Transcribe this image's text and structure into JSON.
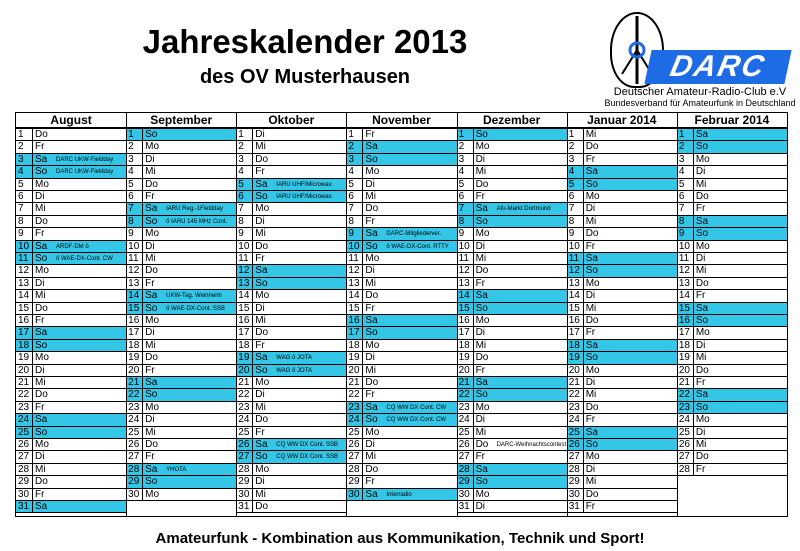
{
  "title": "Jahreskalender 2013",
  "subtitle": "des OV Musterhausen",
  "logo": {
    "darc": "DARC",
    "line1": "Deutscher Amateur-Radio-Club e.V",
    "line2": "Bundesverband für Amateurfunk in Deutschland",
    "accent_color": "#1e6be6"
  },
  "highlight_color": "#33c6e6",
  "months": [
    {
      "name": "August",
      "days": [
        {
          "d": "1",
          "w": "Do"
        },
        {
          "d": "2",
          "w": "Fr"
        },
        {
          "d": "3",
          "w": "Sa",
          "hl": true,
          "ev": "DARC UKW-Fieldday"
        },
        {
          "d": "4",
          "w": "So",
          "hl": true,
          "ev": "DARC UKW-Fieldday"
        },
        {
          "d": "5",
          "w": "Mo"
        },
        {
          "d": "6",
          "w": "Di"
        },
        {
          "d": "7",
          "w": "Mi"
        },
        {
          "d": "8",
          "w": "Do"
        },
        {
          "d": "9",
          "w": "Fr"
        },
        {
          "d": "10",
          "w": "Sa",
          "hl": true,
          "ev": "ARDF-DM ö"
        },
        {
          "d": "11",
          "w": "So",
          "hl": true,
          "ev": "ö WAE-DX-Cont. CW"
        },
        {
          "d": "12",
          "w": "Mo"
        },
        {
          "d": "13",
          "w": "Di"
        },
        {
          "d": "14",
          "w": "Mi"
        },
        {
          "d": "15",
          "w": "Do"
        },
        {
          "d": "16",
          "w": "Fr"
        },
        {
          "d": "17",
          "w": "Sa",
          "hl": true
        },
        {
          "d": "18",
          "w": "So",
          "hl": true
        },
        {
          "d": "19",
          "w": "Mo"
        },
        {
          "d": "20",
          "w": "Di"
        },
        {
          "d": "21",
          "w": "Mi"
        },
        {
          "d": "22",
          "w": "Do"
        },
        {
          "d": "23",
          "w": "Fr"
        },
        {
          "d": "24",
          "w": "Sa",
          "hl": true
        },
        {
          "d": "25",
          "w": "So",
          "hl": true
        },
        {
          "d": "26",
          "w": "Mo"
        },
        {
          "d": "27",
          "w": "Di"
        },
        {
          "d": "28",
          "w": "Mi"
        },
        {
          "d": "29",
          "w": "Do"
        },
        {
          "d": "30",
          "w": "Fr"
        },
        {
          "d": "31",
          "w": "Sa",
          "hl": true
        }
      ]
    },
    {
      "name": "September",
      "days": [
        {
          "d": "1",
          "w": "So",
          "hl": true
        },
        {
          "d": "2",
          "w": "Mo"
        },
        {
          "d": "3",
          "w": "Di"
        },
        {
          "d": "4",
          "w": "Mi"
        },
        {
          "d": "5",
          "w": "Do"
        },
        {
          "d": "6",
          "w": "Fr"
        },
        {
          "d": "7",
          "w": "Sa",
          "hl": true,
          "ev": "IARU Reg.-1Fieldday"
        },
        {
          "d": "8",
          "w": "So",
          "hl": true,
          "ev": "ö IARU 145 MHz Cont."
        },
        {
          "d": "9",
          "w": "Mo"
        },
        {
          "d": "10",
          "w": "Di"
        },
        {
          "d": "11",
          "w": "Mi"
        },
        {
          "d": "12",
          "w": "Do"
        },
        {
          "d": "13",
          "w": "Fr"
        },
        {
          "d": "14",
          "w": "Sa",
          "hl": true,
          "ev": "UKW-Tag. Weinheim"
        },
        {
          "d": "15",
          "w": "So",
          "hl": true,
          "ev": "ö WAE-DX-Cont. SSB"
        },
        {
          "d": "16",
          "w": "Mo"
        },
        {
          "d": "17",
          "w": "Di"
        },
        {
          "d": "18",
          "w": "Mi"
        },
        {
          "d": "19",
          "w": "Do"
        },
        {
          "d": "20",
          "w": "Fr"
        },
        {
          "d": "21",
          "w": "Sa",
          "hl": true
        },
        {
          "d": "22",
          "w": "So",
          "hl": true
        },
        {
          "d": "23",
          "w": "Mo"
        },
        {
          "d": "24",
          "w": "Di"
        },
        {
          "d": "25",
          "w": "Mi"
        },
        {
          "d": "26",
          "w": "Do"
        },
        {
          "d": "27",
          "w": "Fr"
        },
        {
          "d": "28",
          "w": "Sa",
          "hl": true,
          "ev": "YHOTA"
        },
        {
          "d": "29",
          "w": "So",
          "hl": true
        },
        {
          "d": "30",
          "w": "Mo"
        }
      ]
    },
    {
      "name": "Oktober",
      "days": [
        {
          "d": "1",
          "w": "Di"
        },
        {
          "d": "2",
          "w": "Mi"
        },
        {
          "d": "3",
          "w": "Do"
        },
        {
          "d": "4",
          "w": "Fr"
        },
        {
          "d": "5",
          "w": "Sa",
          "hl": true,
          "ev": "IARU UHF/Microwav."
        },
        {
          "d": "6",
          "w": "So",
          "hl": true,
          "ev": "IARU UHF/Microwav."
        },
        {
          "d": "7",
          "w": "Mo"
        },
        {
          "d": "8",
          "w": "Di"
        },
        {
          "d": "9",
          "w": "Mi"
        },
        {
          "d": "10",
          "w": "Do"
        },
        {
          "d": "11",
          "w": "Fr"
        },
        {
          "d": "12",
          "w": "Sa",
          "hl": true
        },
        {
          "d": "13",
          "w": "So",
          "hl": true
        },
        {
          "d": "14",
          "w": "Mo"
        },
        {
          "d": "15",
          "w": "Di"
        },
        {
          "d": "16",
          "w": "Mi"
        },
        {
          "d": "17",
          "w": "Do"
        },
        {
          "d": "18",
          "w": "Fr"
        },
        {
          "d": "19",
          "w": "Sa",
          "hl": true,
          "ev": "WAG ö JOTA"
        },
        {
          "d": "20",
          "w": "So",
          "hl": true,
          "ev": "WAG ö JOTA"
        },
        {
          "d": "21",
          "w": "Mo"
        },
        {
          "d": "22",
          "w": "Di"
        },
        {
          "d": "23",
          "w": "Mi"
        },
        {
          "d": "24",
          "w": "Do"
        },
        {
          "d": "25",
          "w": "Fr"
        },
        {
          "d": "26",
          "w": "Sa",
          "hl": true,
          "ev": "CQ WW DX Cont. SSB"
        },
        {
          "d": "27",
          "w": "So",
          "hl": true,
          "ev": "CQ WW DX Cont. SSB"
        },
        {
          "d": "28",
          "w": "Mo"
        },
        {
          "d": "29",
          "w": "Di"
        },
        {
          "d": "30",
          "w": "Mi"
        },
        {
          "d": "31",
          "w": "Do"
        }
      ]
    },
    {
      "name": "November",
      "days": [
        {
          "d": "1",
          "w": "Fr"
        },
        {
          "d": "2",
          "w": "Sa",
          "hl": true
        },
        {
          "d": "3",
          "w": "So",
          "hl": true
        },
        {
          "d": "4",
          "w": "Mo"
        },
        {
          "d": "5",
          "w": "Di"
        },
        {
          "d": "6",
          "w": "Mi"
        },
        {
          "d": "7",
          "w": "Do"
        },
        {
          "d": "8",
          "w": "Fr"
        },
        {
          "d": "9",
          "w": "Sa",
          "hl": true,
          "ev": "DARC-Mitgliederver."
        },
        {
          "d": "10",
          "w": "So",
          "hl": true,
          "ev": "ö WAE-DX-Cont. RTTY"
        },
        {
          "d": "11",
          "w": "Mo"
        },
        {
          "d": "12",
          "w": "Di"
        },
        {
          "d": "13",
          "w": "Mi"
        },
        {
          "d": "14",
          "w": "Do"
        },
        {
          "d": "15",
          "w": "Fr"
        },
        {
          "d": "16",
          "w": "Sa",
          "hl": true
        },
        {
          "d": "17",
          "w": "So",
          "hl": true
        },
        {
          "d": "18",
          "w": "Mo"
        },
        {
          "d": "19",
          "w": "Di"
        },
        {
          "d": "20",
          "w": "Mi"
        },
        {
          "d": "21",
          "w": "Do"
        },
        {
          "d": "22",
          "w": "Fr"
        },
        {
          "d": "23",
          "w": "Sa",
          "hl": true,
          "ev": "CQ WW DX Cont. CW"
        },
        {
          "d": "24",
          "w": "So",
          "hl": true,
          "ev": "CQ WW DX Cont. CW"
        },
        {
          "d": "25",
          "w": "Mo"
        },
        {
          "d": "26",
          "w": "Di"
        },
        {
          "d": "27",
          "w": "Mi"
        },
        {
          "d": "28",
          "w": "Do"
        },
        {
          "d": "29",
          "w": "Fr"
        },
        {
          "d": "30",
          "w": "Sa",
          "hl": true,
          "ev": "Interradio"
        }
      ]
    },
    {
      "name": "Dezember",
      "days": [
        {
          "d": "1",
          "w": "So",
          "hl": true
        },
        {
          "d": "2",
          "w": "Mo"
        },
        {
          "d": "3",
          "w": "Di"
        },
        {
          "d": "4",
          "w": "Mi"
        },
        {
          "d": "5",
          "w": "Do"
        },
        {
          "d": "6",
          "w": "Fr"
        },
        {
          "d": "7",
          "w": "Sa",
          "hl": true,
          "ev": "Afu-Markt Dortmund"
        },
        {
          "d": "8",
          "w": "So",
          "hl": true
        },
        {
          "d": "9",
          "w": "Mo"
        },
        {
          "d": "10",
          "w": "Di"
        },
        {
          "d": "11",
          "w": "Mi"
        },
        {
          "d": "12",
          "w": "Do"
        },
        {
          "d": "13",
          "w": "Fr"
        },
        {
          "d": "14",
          "w": "Sa",
          "hl": true
        },
        {
          "d": "15",
          "w": "So",
          "hl": true
        },
        {
          "d": "16",
          "w": "Mo"
        },
        {
          "d": "17",
          "w": "Di"
        },
        {
          "d": "18",
          "w": "Mi"
        },
        {
          "d": "19",
          "w": "Do"
        },
        {
          "d": "20",
          "w": "Fr"
        },
        {
          "d": "21",
          "w": "Sa",
          "hl": true
        },
        {
          "d": "22",
          "w": "So",
          "hl": true
        },
        {
          "d": "23",
          "w": "Mo"
        },
        {
          "d": "24",
          "w": "Di"
        },
        {
          "d": "25",
          "w": "Mi"
        },
        {
          "d": "26",
          "w": "Do",
          "ev": "DARC-Weihnachtscontest"
        },
        {
          "d": "27",
          "w": "Fr"
        },
        {
          "d": "28",
          "w": "Sa",
          "hl": true
        },
        {
          "d": "29",
          "w": "So",
          "hl": true
        },
        {
          "d": "30",
          "w": "Mo"
        },
        {
          "d": "31",
          "w": "Di"
        }
      ]
    },
    {
      "name": "Januar 2014",
      "days": [
        {
          "d": "1",
          "w": "Mi"
        },
        {
          "d": "2",
          "w": "Do"
        },
        {
          "d": "3",
          "w": "Fr"
        },
        {
          "d": "4",
          "w": "Sa",
          "hl": true
        },
        {
          "d": "5",
          "w": "So",
          "hl": true
        },
        {
          "d": "6",
          "w": "Mo"
        },
        {
          "d": "7",
          "w": "Di"
        },
        {
          "d": "8",
          "w": "Mi"
        },
        {
          "d": "9",
          "w": "Do"
        },
        {
          "d": "10",
          "w": "Fr"
        },
        {
          "d": "11",
          "w": "Sa",
          "hl": true
        },
        {
          "d": "12",
          "w": "So",
          "hl": true
        },
        {
          "d": "13",
          "w": "Mo"
        },
        {
          "d": "14",
          "w": "Di"
        },
        {
          "d": "15",
          "w": "Mi"
        },
        {
          "d": "16",
          "w": "Do"
        },
        {
          "d": "17",
          "w": "Fr"
        },
        {
          "d": "18",
          "w": "Sa",
          "hl": true
        },
        {
          "d": "19",
          "w": "So",
          "hl": true
        },
        {
          "d": "20",
          "w": "Mo"
        },
        {
          "d": "21",
          "w": "Di"
        },
        {
          "d": "22",
          "w": "Mi"
        },
        {
          "d": "23",
          "w": "Do"
        },
        {
          "d": "24",
          "w": "Fr"
        },
        {
          "d": "25",
          "w": "Sa",
          "hl": true
        },
        {
          "d": "26",
          "w": "So",
          "hl": true
        },
        {
          "d": "27",
          "w": "Mo"
        },
        {
          "d": "28",
          "w": "Di"
        },
        {
          "d": "29",
          "w": "Mi"
        },
        {
          "d": "30",
          "w": "Do"
        },
        {
          "d": "31",
          "w": "Fr"
        }
      ]
    },
    {
      "name": "Februar 2014",
      "days": [
        {
          "d": "1",
          "w": "Sa",
          "hl": true
        },
        {
          "d": "2",
          "w": "So",
          "hl": true
        },
        {
          "d": "3",
          "w": "Mo"
        },
        {
          "d": "4",
          "w": "Di"
        },
        {
          "d": "5",
          "w": "Mi"
        },
        {
          "d": "6",
          "w": "Do"
        },
        {
          "d": "7",
          "w": "Fr"
        },
        {
          "d": "8",
          "w": "Sa",
          "hl": true
        },
        {
          "d": "9",
          "w": "So",
          "hl": true
        },
        {
          "d": "10",
          "w": "Mo"
        },
        {
          "d": "11",
          "w": "Di"
        },
        {
          "d": "12",
          "w": "Mi"
        },
        {
          "d": "13",
          "w": "Do"
        },
        {
          "d": "14",
          "w": "Fr"
        },
        {
          "d": "15",
          "w": "Sa",
          "hl": true
        },
        {
          "d": "16",
          "w": "So",
          "hl": true
        },
        {
          "d": "17",
          "w": "Mo"
        },
        {
          "d": "18",
          "w": "Di"
        },
        {
          "d": "19",
          "w": "Mi"
        },
        {
          "d": "20",
          "w": "Do"
        },
        {
          "d": "21",
          "w": "Fr"
        },
        {
          "d": "22",
          "w": "Sa",
          "hl": true
        },
        {
          "d": "23",
          "w": "So",
          "hl": true
        },
        {
          "d": "24",
          "w": "Mo"
        },
        {
          "d": "25",
          "w": "Di"
        },
        {
          "d": "26",
          "w": "Mi"
        },
        {
          "d": "27",
          "w": "Do"
        },
        {
          "d": "28",
          "w": "Fr"
        }
      ]
    }
  ],
  "footer": "Amateurfunk - Kombination aus Kommunikation, Technik und Sport!"
}
